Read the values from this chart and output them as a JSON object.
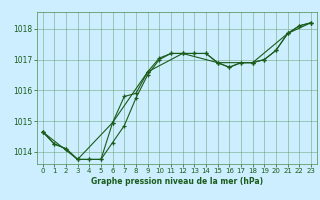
{
  "title": "Graphe pression niveau de la mer (hPa)",
  "background_color": "#cceeff",
  "plot_bg_color": "#cceeff",
  "grid_color": "#4d8c4d",
  "line_color": "#1a5c1a",
  "xlim": [
    -0.5,
    23.5
  ],
  "ylim": [
    1013.6,
    1018.55
  ],
  "yticks": [
    1014,
    1015,
    1016,
    1017,
    1018
  ],
  "xticks": [
    0,
    1,
    2,
    3,
    4,
    5,
    6,
    7,
    8,
    9,
    10,
    11,
    12,
    13,
    14,
    15,
    16,
    17,
    18,
    19,
    20,
    21,
    22,
    23
  ],
  "series1_x": [
    0,
    1,
    2,
    3,
    4,
    5,
    6,
    7,
    8,
    9,
    10,
    11,
    12,
    13,
    14,
    15,
    16,
    17,
    18,
    19,
    20,
    21,
    22,
    23
  ],
  "series1_y": [
    1014.65,
    1014.25,
    1014.1,
    1013.75,
    1013.75,
    1013.75,
    1014.95,
    1015.8,
    1015.9,
    1016.6,
    1017.05,
    1017.2,
    1017.2,
    1017.2,
    1017.2,
    1016.9,
    1016.75,
    1016.9,
    1016.9,
    1017.0,
    1017.3,
    1017.85,
    1018.1,
    1018.2
  ],
  "series2_x": [
    0,
    1,
    2,
    3,
    4,
    5,
    6,
    7,
    8,
    9,
    10,
    11,
    12,
    13,
    14,
    15,
    16,
    17,
    18,
    19,
    20,
    21,
    22,
    23
  ],
  "series2_y": [
    1014.65,
    1014.25,
    1014.1,
    1013.75,
    1013.75,
    1013.75,
    1014.3,
    1014.85,
    1015.75,
    1016.5,
    1017.0,
    1017.2,
    1017.2,
    1017.2,
    1017.2,
    1016.9,
    1016.75,
    1016.9,
    1016.9,
    1017.0,
    1017.3,
    1017.85,
    1018.1,
    1018.2
  ],
  "series3_x": [
    0,
    3,
    6,
    9,
    12,
    15,
    18,
    21,
    23
  ],
  "series3_y": [
    1014.65,
    1013.75,
    1014.95,
    1016.6,
    1017.2,
    1016.9,
    1016.9,
    1017.85,
    1018.2
  ]
}
